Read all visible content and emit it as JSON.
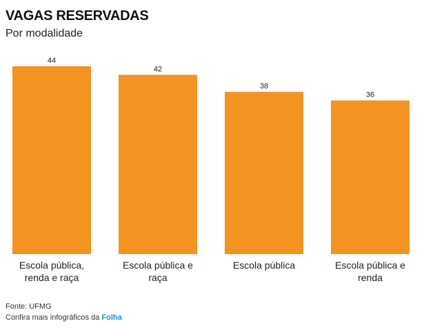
{
  "header": {
    "title": "VAGAS RESERVADAS",
    "subtitle": "Por modalidade"
  },
  "footer": {
    "source": "Fonte: UFMG",
    "more_prefix": "Confira mais infográficos da",
    "brand": "Folha"
  },
  "colors": {
    "bar": "#f39322",
    "baseline": "#cccccc",
    "brand": "#1a8fd1"
  },
  "chart_data": {
    "type": "bar",
    "title": "VAGAS RESERVADAS",
    "subtitle": "Por modalidade",
    "categories": [
      [
        "Escola pública,",
        "renda e raça"
      ],
      [
        "Escola pública e",
        "raça"
      ],
      [
        "Escola pública"
      ],
      [
        "Escola pública e",
        "renda"
      ]
    ],
    "values": [
      44,
      42,
      38,
      36
    ],
    "ylim": [
      0,
      44
    ],
    "grid": false,
    "data_labels": true
  }
}
